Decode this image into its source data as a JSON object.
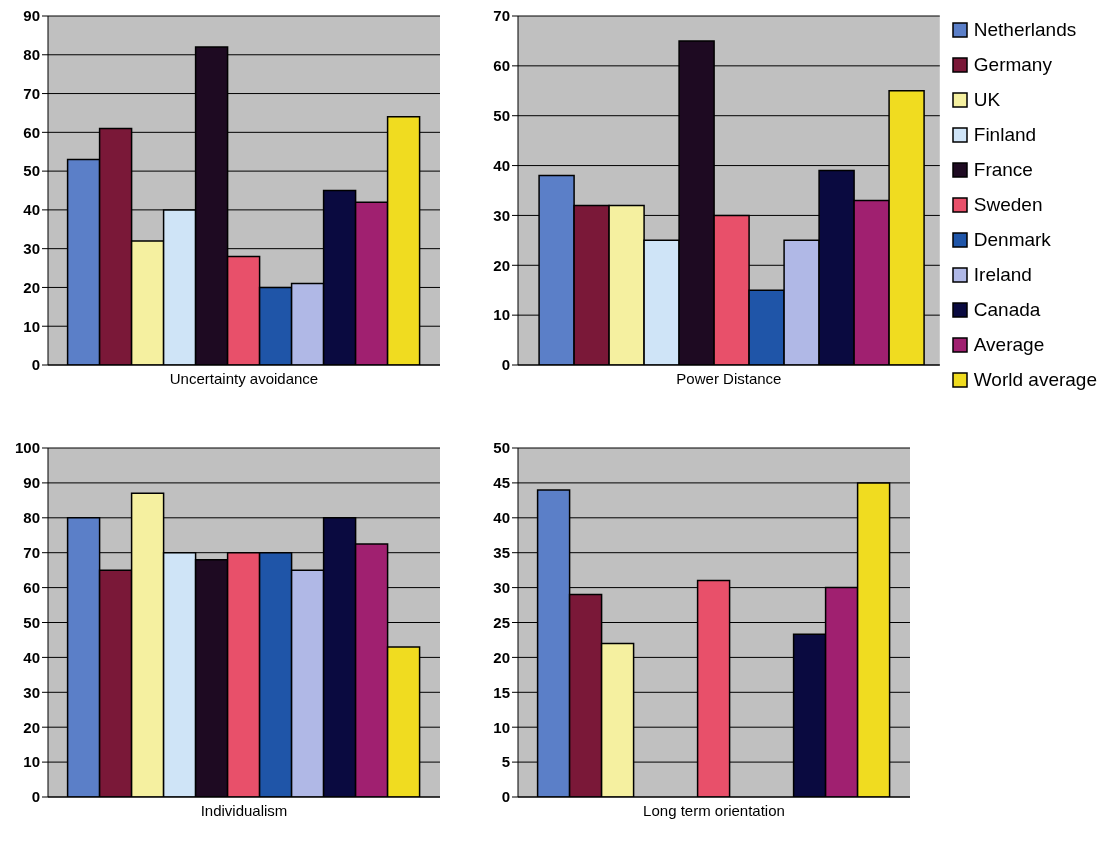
{
  "chart_data": [
    {
      "type": "bar",
      "categories": [
        "Uncertainty avoidance"
      ],
      "ylim": [
        0,
        90
      ],
      "yticks": [
        0,
        10,
        20,
        30,
        40,
        50,
        60,
        70,
        80,
        90
      ],
      "grid": "y",
      "legend": false,
      "series": [
        {
          "color": "#5b7fc8",
          "values": [
            53
          ]
        },
        {
          "color": "#7a1838",
          "values": [
            61
          ]
        },
        {
          "color": "#f5f0a0",
          "values": [
            32
          ]
        },
        {
          "color": "#cfe4f7",
          "values": [
            40
          ]
        },
        {
          "color": "#1e0a22",
          "values": [
            82
          ]
        },
        {
          "color": "#e8506a",
          "values": [
            28
          ]
        },
        {
          "color": "#1f55a8",
          "values": [
            20
          ]
        },
        {
          "color": "#b0b8e6",
          "values": [
            21
          ]
        },
        {
          "color": "#0a0a40",
          "values": [
            45
          ]
        },
        {
          "color": "#a02070",
          "values": [
            42
          ]
        },
        {
          "color": "#f0dc20",
          "values": [
            64
          ]
        }
      ]
    },
    {
      "type": "bar",
      "categories": [
        "Power Distance"
      ],
      "ylim": [
        0,
        70
      ],
      "yticks": [
        0,
        10,
        20,
        30,
        40,
        50,
        60,
        70
      ],
      "grid": "y",
      "legend": "right",
      "series": [
        {
          "name": "Netherlands",
          "color": "#5b7fc8",
          "values": [
            38
          ]
        },
        {
          "name": "Germany",
          "color": "#7a1838",
          "values": [
            32
          ]
        },
        {
          "name": "UK",
          "color": "#f5f0a0",
          "values": [
            32
          ]
        },
        {
          "name": "Finland",
          "color": "#cfe4f7",
          "values": [
            25
          ]
        },
        {
          "name": "France",
          "color": "#1e0a22",
          "values": [
            65
          ]
        },
        {
          "name": "Sweden",
          "color": "#e8506a",
          "values": [
            30
          ]
        },
        {
          "name": "Denmark",
          "color": "#1f55a8",
          "values": [
            15
          ]
        },
        {
          "name": "Ireland",
          "color": "#b0b8e6",
          "values": [
            25
          ]
        },
        {
          "name": "Canada",
          "color": "#0a0a40",
          "values": [
            39
          ]
        },
        {
          "name": "Average",
          "color": "#a02070",
          "values": [
            33
          ]
        },
        {
          "name": "World average",
          "color": "#f0dc20",
          "values": [
            55
          ]
        }
      ]
    },
    {
      "type": "bar",
      "categories": [
        "Individualism"
      ],
      "ylim": [
        0,
        100
      ],
      "yticks": [
        0,
        10,
        20,
        30,
        40,
        50,
        60,
        70,
        80,
        90,
        100
      ],
      "grid": "y",
      "legend": false,
      "series": [
        {
          "color": "#5b7fc8",
          "values": [
            80
          ]
        },
        {
          "color": "#7a1838",
          "values": [
            65
          ]
        },
        {
          "color": "#f5f0a0",
          "values": [
            87
          ]
        },
        {
          "color": "#cfe4f7",
          "values": [
            70
          ]
        },
        {
          "color": "#1e0a22",
          "values": [
            68
          ]
        },
        {
          "color": "#e8506a",
          "values": [
            70
          ]
        },
        {
          "color": "#1f55a8",
          "values": [
            70
          ]
        },
        {
          "color": "#b0b8e6",
          "values": [
            65
          ]
        },
        {
          "color": "#0a0a40",
          "values": [
            80
          ]
        },
        {
          "color": "#a02070",
          "values": [
            72.5
          ]
        },
        {
          "color": "#f0dc20",
          "values": [
            43
          ]
        }
      ]
    },
    {
      "type": "bar",
      "categories": [
        "Long term orientation"
      ],
      "ylim": [
        0,
        50
      ],
      "yticks": [
        0,
        5,
        10,
        15,
        20,
        25,
        30,
        35,
        40,
        45,
        50
      ],
      "grid": "y",
      "legend": false,
      "series": [
        {
          "color": "#5b7fc8",
          "values": [
            44
          ]
        },
        {
          "color": "#7a1838",
          "values": [
            29
          ]
        },
        {
          "color": "#f5f0a0",
          "values": [
            22
          ]
        },
        {
          "color": "#cfe4f7",
          "values": [
            null
          ]
        },
        {
          "color": "#1e0a22",
          "values": [
            null
          ]
        },
        {
          "color": "#e8506a",
          "values": [
            31
          ]
        },
        {
          "color": "#1f55a8",
          "values": [
            null
          ]
        },
        {
          "color": "#b0b8e6",
          "values": [
            null
          ]
        },
        {
          "color": "#0a0a40",
          "values": [
            23.3
          ]
        },
        {
          "color": "#a02070",
          "values": [
            30
          ]
        },
        {
          "color": "#f0dc20",
          "values": [
            45
          ]
        }
      ]
    }
  ]
}
